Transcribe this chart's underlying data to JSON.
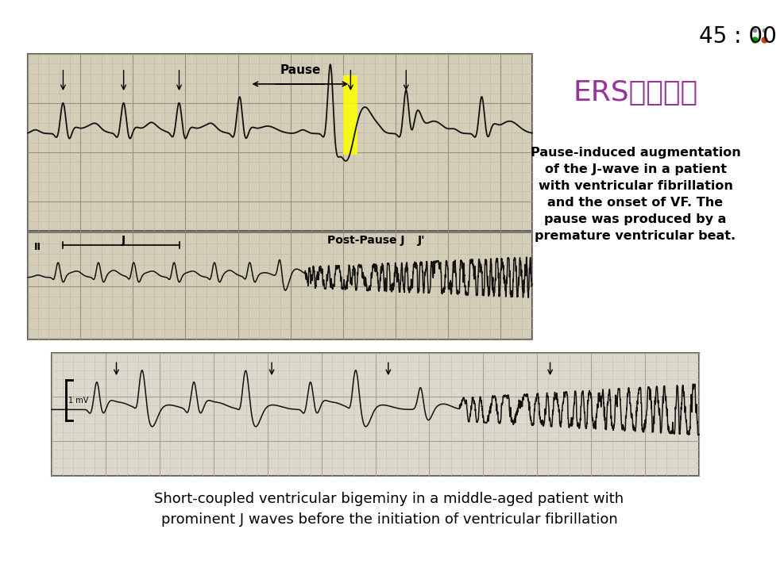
{
  "background_color": "#ffffff",
  "title_text": "ERS典型表现",
  "title_color": "#993399",
  "title_fontsize": 26,
  "timer_text": "45 : 00",
  "timer_color": "#000000",
  "timer_fontsize": 20,
  "desc_text": "Pause-induced augmentation\nof the J-wave in a patient\nwith ventricular fibrillation\nand the onset of VF. The\npause was produced by a\npremature ventricular beat.",
  "desc_fontsize": 11.5,
  "desc_color": "#000000",
  "caption_text": "Short-coupled ventricular bigeminy in a middle-aged patient with\nprominent J waves before the initiation of ventricular fibrillation",
  "caption_fontsize": 13,
  "caption_color": "#000000",
  "dot1_color": "#009900",
  "dot2_color": "#cc4400",
  "ecg_bg": "#d8d0c0",
  "ecg_minor": "#bbbbbb",
  "ecg_major": "#999999",
  "ecg_line": "#111111"
}
